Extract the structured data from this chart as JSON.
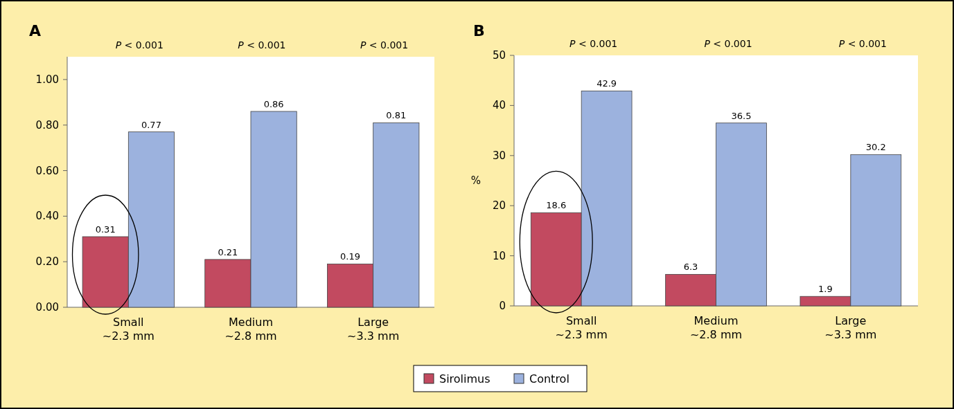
{
  "chart_data": [
    {
      "type": "bar",
      "title": "A",
      "categories": [
        "Small\n~2.3 mm",
        "Medium\n~2.8 mm",
        "Large\n~3.3 mm"
      ],
      "series": [
        {
          "name": "Sirolimus",
          "color": "#c24a60",
          "values": [
            0.31,
            0.21,
            0.19
          ]
        },
        {
          "name": "Control",
          "color": "#9cb2de",
          "values": [
            0.77,
            0.86,
            0.81
          ]
        }
      ],
      "ylim": [
        0,
        1.1
      ],
      "yticks": [
        {
          "value": 0,
          "label": "0.00"
        },
        {
          "value": 0.2,
          "label": "0.20"
        },
        {
          "value": 0.4,
          "label": "0.40"
        },
        {
          "value": 0.6,
          "label": "0.60"
        },
        {
          "value": 0.8,
          "label": "0.80"
        },
        {
          "value": 1,
          "label": "1.00"
        }
      ],
      "data_labels": true,
      "annotations": [
        "P < 0.001",
        "P < 0.001",
        "P < 0.001"
      ],
      "legend": "bottom",
      "grid": false
    },
    {
      "type": "bar",
      "title": "B",
      "ylabel": "%",
      "categories": [
        "Small\n~2.3 mm",
        "Medium\n~2.8 mm",
        "Large\n~3.3 mm"
      ],
      "series": [
        {
          "color": "#c24a60",
          "values": [
            18.6,
            6.3,
            1.9
          ]
        },
        {
          "color": "#9cb2de",
          "values": [
            42.9,
            36.5,
            30.2
          ]
        }
      ],
      "ylim": [
        0,
        50
      ],
      "yticks": [
        0,
        10,
        20,
        30,
        40,
        50
      ],
      "data_labels": true,
      "annotations": [
        "P < 0.001",
        "P < 0.001",
        "P < 0.001"
      ],
      "grid": false
    }
  ]
}
